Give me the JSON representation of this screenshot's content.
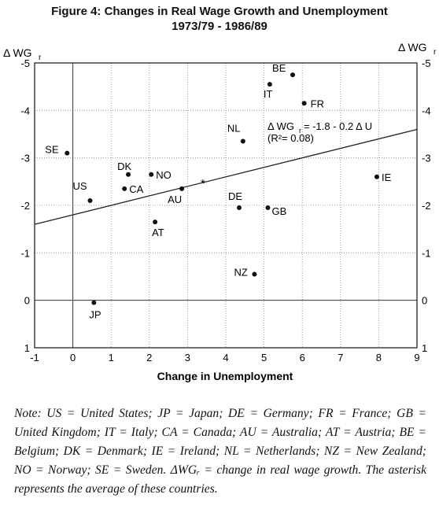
{
  "chart_data": {
    "type": "scatter",
    "title": "Figure 4: Changes in Real Wage Growth and Unemployment",
    "subtitle": "1973/79 - 1986/89",
    "xlabel": "Change in Unemployment",
    "ylabel_left": "Δ WG",
    "ylabel_right": "Δ WG",
    "ylabel_subscript": "r",
    "xlim": [
      -1,
      9
    ],
    "ylim": [
      1,
      -5
    ],
    "x_ticks": [
      -1,
      0,
      1,
      2,
      3,
      4,
      5,
      6,
      7,
      8,
      9
    ],
    "y_ticks": [
      -5,
      -4,
      -3,
      -2,
      -1,
      0,
      1
    ],
    "grid": true,
    "points": [
      {
        "label": "BE",
        "x": 5.75,
        "y": -4.75
      },
      {
        "label": "IT",
        "x": 5.15,
        "y": -4.55
      },
      {
        "label": "FR",
        "x": 6.05,
        "y": -4.15
      },
      {
        "label": "NL",
        "x": 4.45,
        "y": -3.35
      },
      {
        "label": "SE",
        "x": -0.15,
        "y": -3.1
      },
      {
        "label": "IE",
        "x": 7.95,
        "y": -2.6
      },
      {
        "label": "DK",
        "x": 1.45,
        "y": -2.65
      },
      {
        "label": "NO",
        "x": 2.05,
        "y": -2.65
      },
      {
        "label": "US",
        "x": 0.45,
        "y": -2.1
      },
      {
        "label": "CA",
        "x": 1.35,
        "y": -2.35
      },
      {
        "label": "AU",
        "x": 2.85,
        "y": -2.35
      },
      {
        "label": "DE",
        "x": 4.35,
        "y": -1.95
      },
      {
        "label": "GB",
        "x": 5.1,
        "y": -1.95
      },
      {
        "label": "AT",
        "x": 2.15,
        "y": -1.65
      },
      {
        "label": "NZ",
        "x": 4.75,
        "y": -0.55
      },
      {
        "label": "JP",
        "x": 0.55,
        "y": 0.05
      }
    ],
    "average": {
      "x": 3.4,
      "y": -2.5
    },
    "regression": {
      "intercept": -1.8,
      "slope": -0.2,
      "x_from": -1,
      "x_to": 9,
      "equation": "Δ WG",
      "equation_rest": " = -1.8 - 0.2 Δ U",
      "r2": "(R²= 0.08)"
    }
  },
  "note": "Note: US = United States; JP = Japan; DE = Germany; FR = France; GB = United Kingdom; IT = Italy; CA = Canada; AU = Australia; AT = Austria; BE = Belgium; DK = Denmark; IE = Ireland; NL = Netherlands; NZ = New Zealand; NO = Norway; SE = Sweden. ΔWGᵣ = change in real wage growth. The asterisk represents the average of these countries."
}
